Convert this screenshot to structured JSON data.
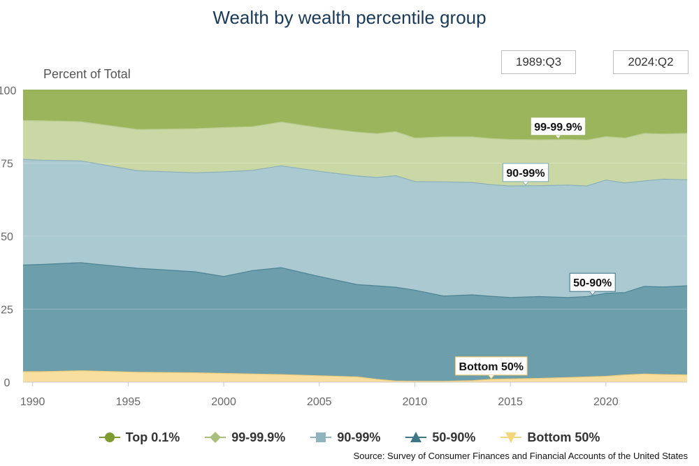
{
  "title": "Wealth by wealth percentile group",
  "date_range": {
    "start": "1989:Q3",
    "end": "2024:Q2"
  },
  "source": "Source: Survey of Consumer Finances and Financial Accounts of the United States",
  "colors": {
    "top01": "#9bb55d",
    "p99_999": "#c9d8a5",
    "p90_99": "#aac9d1",
    "p50_90": "#6c9eac",
    "bottom50": "#f8dfa0",
    "line50_90": "#4d8394",
    "line90_99": "#8bb0ba",
    "bottom_line": "#eccb7a"
  },
  "legend": [
    {
      "name": "Top 0.1%",
      "marker": "circle",
      "color": "#7d9b30"
    },
    {
      "name": "99-99.9%",
      "marker": "diamond",
      "color": "#aac07a"
    },
    {
      "name": "90-99%",
      "marker": "square",
      "color": "#8fb4be"
    },
    {
      "name": "50-90%",
      "marker": "triangle",
      "color": "#3f7787"
    },
    {
      "name": "Bottom 50%",
      "marker": "triangle-down",
      "color": "#f4d67f"
    }
  ],
  "chart_data": {
    "type": "area",
    "stacked": true,
    "ylabel": "Percent of Total",
    "ylim": [
      0,
      100
    ],
    "yticks": [
      0,
      25,
      50,
      75,
      100
    ],
    "xlim": [
      1989.5,
      2024.25
    ],
    "xticks": [
      1990,
      1995,
      2000,
      2005,
      2010,
      2015,
      2020
    ],
    "x": [
      1989.5,
      1990.5,
      1992.5,
      1995.5,
      1998.5,
      2000.0,
      2001.5,
      2003.0,
      2005.0,
      2007.0,
      2008.0,
      2009.0,
      2010.0,
      2011.5,
      2013.0,
      2014.0,
      2015.0,
      2016.5,
      2018.0,
      2019.0,
      2020.0,
      2021.0,
      2022.0,
      2023.0,
      2024.25
    ],
    "series": [
      {
        "name": "Bottom 50%",
        "values": [
          3.6,
          3.6,
          3.9,
          3.4,
          3.2,
          3.0,
          2.8,
          2.6,
          2.2,
          1.8,
          1.0,
          0.4,
          0.3,
          0.3,
          0.5,
          1.0,
          1.1,
          1.3,
          1.6,
          1.8,
          2.0,
          2.5,
          2.8,
          2.6,
          2.5
        ]
      },
      {
        "name": "50-90%",
        "values": [
          36.5,
          36.7,
          37.0,
          35.6,
          34.6,
          33.2,
          35.4,
          36.6,
          34.0,
          31.6,
          32.0,
          32.1,
          31.2,
          29.2,
          29.4,
          28.4,
          27.9,
          28.0,
          27.4,
          27.5,
          28.4,
          28.2,
          30.0,
          30.0,
          30.5
        ]
      },
      {
        "name": "90-99%",
        "values": [
          36.2,
          35.7,
          34.9,
          33.4,
          33.9,
          35.8,
          34.3,
          34.9,
          36.0,
          37.2,
          37.1,
          38.2,
          37.2,
          39.1,
          38.5,
          38.2,
          38.2,
          38.0,
          38.5,
          37.9,
          38.8,
          37.5,
          36.1,
          36.9,
          36.3
        ]
      },
      {
        "name": "99-99.9%",
        "values": [
          13.3,
          13.5,
          13.4,
          14.1,
          15.1,
          15.2,
          15.0,
          15.0,
          14.9,
          15.0,
          15.0,
          15.1,
          14.9,
          15.4,
          15.6,
          15.8,
          15.9,
          15.7,
          15.6,
          15.7,
          14.9,
          15.4,
          16.3,
          15.5,
          15.9
        ]
      },
      {
        "name": "Top 0.1%",
        "values": [
          10.4,
          10.5,
          10.8,
          13.5,
          13.2,
          12.8,
          12.5,
          10.9,
          12.9,
          14.4,
          14.9,
          14.2,
          16.4,
          16.0,
          16.0,
          16.6,
          16.9,
          17.0,
          16.9,
          17.1,
          15.9,
          16.4,
          14.8,
          15.0,
          14.8
        ]
      }
    ],
    "annotations": [
      {
        "label": "99-99.9%",
        "x": 2017.5,
        "series": "99-99.9%"
      },
      {
        "label": "90-99%",
        "x": 2015.8,
        "series": "90-99%"
      },
      {
        "label": "50-90%",
        "x": 2019.3,
        "series": "50-90%"
      },
      {
        "label": "Bottom 50%",
        "x": 2014.0,
        "series": "Bottom 50%"
      }
    ]
  }
}
